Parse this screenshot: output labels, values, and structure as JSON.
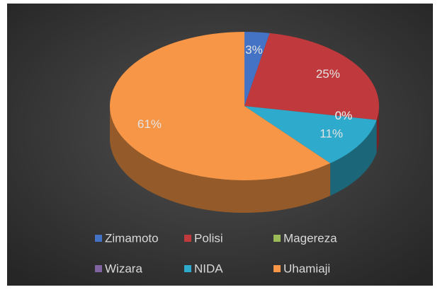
{
  "chart_data": {
    "type": "pie3d",
    "categories": [
      "Zimamoto",
      "Polisi",
      "Magereza",
      "Wizara",
      "NIDA",
      "Uhamiaji"
    ],
    "values": [
      3,
      25,
      0,
      0,
      11,
      61
    ],
    "value_labels": [
      "3%",
      "25%",
      "0%",
      "0%",
      "11%",
      "61%"
    ],
    "colors": [
      "#4472c4",
      "#c0393c",
      "#9bbb59",
      "#8064a2",
      "#2eaacc",
      "#f79646"
    ],
    "legend": "bottom"
  }
}
